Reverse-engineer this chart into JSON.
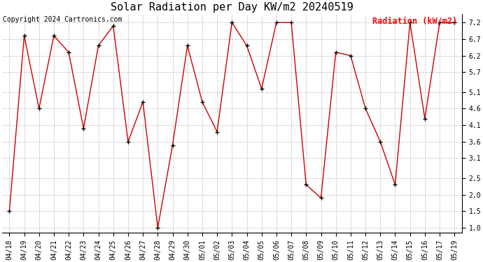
{
  "title": "Solar Radiation per Day KW/m2 20240519",
  "copyright_text": "Copyright 2024 Cartronics.com",
  "legend_label": "Radiation (kW/m2)",
  "dates": [
    "04/18",
    "04/19",
    "04/20",
    "04/21",
    "04/22",
    "04/23",
    "04/24",
    "04/25",
    "04/26",
    "04/27",
    "04/28",
    "04/29",
    "04/30",
    "05/01",
    "05/02",
    "05/03",
    "05/04",
    "05/05",
    "05/06",
    "05/07",
    "05/08",
    "05/09",
    "05/10",
    "05/11",
    "05/12",
    "05/13",
    "05/14",
    "05/15",
    "05/16",
    "05/17",
    "05/19"
  ],
  "values": [
    1.5,
    6.8,
    4.6,
    6.8,
    6.3,
    4.0,
    6.5,
    7.1,
    3.6,
    4.8,
    1.0,
    3.5,
    6.5,
    4.8,
    3.9,
    7.2,
    6.5,
    5.2,
    7.2,
    7.2,
    2.3,
    1.9,
    6.3,
    6.2,
    4.6,
    3.6,
    2.3,
    7.2,
    4.3,
    7.2,
    7.2
  ],
  "line_color": "#cc0000",
  "marker_color": "#000000",
  "grid_color": "#bbbbbb",
  "background_color": "#ffffff",
  "title_fontsize": 11,
  "copyright_fontsize": 7,
  "legend_fontsize": 8.5,
  "tick_fontsize": 7,
  "ylim": [
    0.85,
    7.45
  ],
  "yticks": [
    1.0,
    1.5,
    2.0,
    2.5,
    3.1,
    3.6,
    4.1,
    4.6,
    5.1,
    5.7,
    6.2,
    6.7,
    7.2
  ]
}
